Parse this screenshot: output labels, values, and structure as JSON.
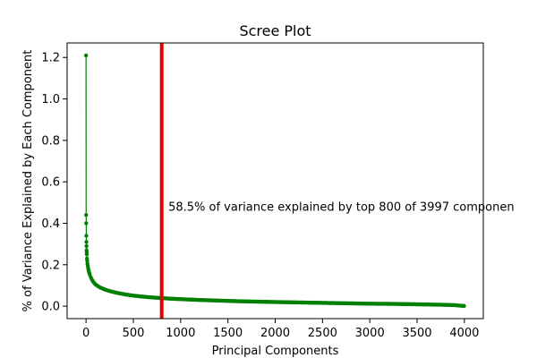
{
  "chart_data": {
    "type": "line",
    "title": "Scree Plot",
    "xlabel": "Principal Components",
    "ylabel": "% of Variance Explained by Each Component",
    "xlim": [
      -200,
      4200
    ],
    "ylim": [
      -0.06,
      1.27
    ],
    "x_ticks": [
      0,
      500,
      1000,
      1500,
      2000,
      2500,
      3000,
      3500,
      4000
    ],
    "y_ticks": [
      0.0,
      0.2,
      0.4,
      0.6,
      0.8,
      1.0,
      1.2
    ],
    "grid": false,
    "series": [
      {
        "color": "#008000",
        "marker": "circle",
        "points": [
          [
            0,
            1.21
          ],
          [
            1,
            0.44
          ],
          [
            2,
            0.4
          ],
          [
            3,
            0.34
          ],
          [
            4,
            0.31
          ],
          [
            5,
            0.29
          ],
          [
            6,
            0.27
          ],
          [
            7,
            0.26
          ],
          [
            8,
            0.25
          ],
          [
            10,
            0.23
          ],
          [
            12,
            0.22
          ],
          [
            15,
            0.205
          ],
          [
            18,
            0.195
          ],
          [
            22,
            0.185
          ],
          [
            26,
            0.175
          ],
          [
            30,
            0.168
          ],
          [
            35,
            0.16
          ],
          [
            40,
            0.152
          ],
          [
            50,
            0.14
          ],
          [
            60,
            0.13
          ],
          [
            70,
            0.122
          ],
          [
            80,
            0.115
          ],
          [
            90,
            0.11
          ],
          [
            100,
            0.105
          ],
          [
            125,
            0.097
          ],
          [
            150,
            0.09
          ],
          [
            175,
            0.085
          ],
          [
            200,
            0.08
          ],
          [
            250,
            0.073
          ],
          [
            300,
            0.067
          ],
          [
            350,
            0.062
          ],
          [
            400,
            0.058
          ],
          [
            450,
            0.054
          ],
          [
            500,
            0.051
          ],
          [
            600,
            0.046
          ],
          [
            700,
            0.042
          ],
          [
            800,
            0.039
          ],
          [
            900,
            0.036
          ],
          [
            1000,
            0.034
          ],
          [
            1200,
            0.03
          ],
          [
            1400,
            0.027
          ],
          [
            1600,
            0.024
          ],
          [
            1800,
            0.022
          ],
          [
            2000,
            0.02
          ],
          [
            2250,
            0.018
          ],
          [
            2500,
            0.016
          ],
          [
            2750,
            0.014
          ],
          [
            3000,
            0.012
          ],
          [
            3250,
            0.011
          ],
          [
            3500,
            0.009
          ],
          [
            3750,
            0.007
          ],
          [
            3900,
            0.005
          ],
          [
            3997,
            0.001
          ]
        ]
      }
    ],
    "vline": {
      "x": 800,
      "color": "#e00000"
    },
    "annotation": {
      "text": "58.5% of variance explained by top 800 of 3997 componen",
      "x": 870,
      "y": 0.46
    }
  }
}
